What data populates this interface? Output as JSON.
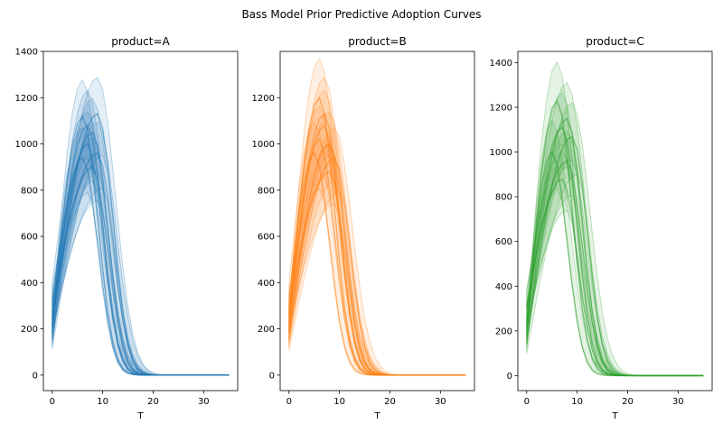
{
  "figure": {
    "suptitle": "Bass Model Prior Predictive Adoption Curves"
  },
  "chart_data": [
    {
      "type": "line",
      "title": "product=A",
      "xlabel": "T",
      "ylabel": "",
      "color": "#1f77b4",
      "xlim": [
        -1.75,
        36.75
      ],
      "ylim": [
        -67,
        1400
      ],
      "xticks": [
        0,
        10,
        20,
        30
      ],
      "yticks": [
        0,
        200,
        400,
        600,
        800,
        1000,
        1200,
        1400
      ],
      "peaks": [
        {
          "peak_t": 6,
          "peak": 1120,
          "init": 180
        },
        {
          "peak_t": 7,
          "peak": 1000,
          "init": 250
        },
        {
          "peak_t": 8,
          "peak": 900,
          "init": 300
        },
        {
          "peak_t": 7,
          "peak": 1080,
          "init": 200
        },
        {
          "peak_t": 9,
          "peak": 960,
          "init": 270
        },
        {
          "peak_t": 8,
          "peak": 1050,
          "init": 210
        },
        {
          "peak_t": 6,
          "peak": 940,
          "init": 320
        },
        {
          "peak_t": 9,
          "peak": 1130,
          "init": 160
        }
      ]
    },
    {
      "type": "line",
      "title": "product=B",
      "xlabel": "T",
      "ylabel": "",
      "color": "#ff7f0e",
      "xlim": [
        -1.75,
        36.75
      ],
      "ylim": [
        -67,
        1400
      ],
      "xticks": [
        0,
        10,
        20,
        30
      ],
      "yticks": [
        0,
        200,
        400,
        600,
        800,
        1000,
        1200
      ],
      "peaks": [
        {
          "peak_t": 6,
          "peak": 1200,
          "init": 230
        },
        {
          "peak_t": 7,
          "peak": 1080,
          "init": 260
        },
        {
          "peak_t": 8,
          "peak": 1000,
          "init": 180
        },
        {
          "peak_t": 5,
          "peak": 960,
          "init": 320
        },
        {
          "peak_t": 9,
          "peak": 940,
          "init": 150
        },
        {
          "peak_t": 7,
          "peak": 1130,
          "init": 200
        },
        {
          "peak_t": 8,
          "peak": 880,
          "init": 290
        },
        {
          "peak_t": 6,
          "peak": 1020,
          "init": 250
        }
      ]
    },
    {
      "type": "line",
      "title": "product=C",
      "xlabel": "T",
      "ylabel": "",
      "color": "#2ca02c",
      "xlim": [
        -1.75,
        36.75
      ],
      "ylim": [
        -67,
        1450
      ],
      "xticks": [
        0,
        10,
        20,
        30
      ],
      "yticks": [
        0,
        200,
        400,
        600,
        800,
        1000,
        1200,
        1400
      ],
      "peaks": [
        {
          "peak_t": 6,
          "peak": 1230,
          "init": 170
        },
        {
          "peak_t": 7,
          "peak": 1110,
          "init": 250
        },
        {
          "peak_t": 8,
          "peak": 960,
          "init": 300
        },
        {
          "peak_t": 5,
          "peak": 1000,
          "init": 200
        },
        {
          "peak_t": 9,
          "peak": 1070,
          "init": 140
        },
        {
          "peak_t": 7,
          "peak": 880,
          "init": 310
        },
        {
          "peak_t": 8,
          "peak": 1150,
          "init": 220
        }
      ]
    }
  ]
}
